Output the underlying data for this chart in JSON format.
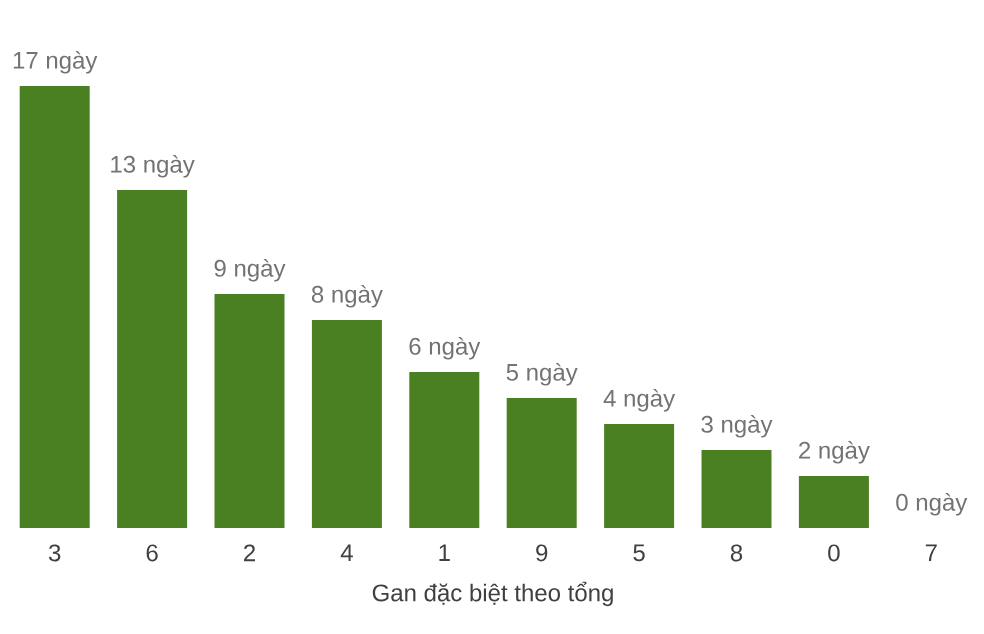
{
  "chart_data": {
    "type": "bar",
    "xlabel": "Gan đặc biệt theo tổng",
    "categories": [
      "3",
      "6",
      "2",
      "4",
      "1",
      "9",
      "5",
      "8",
      "0",
      "7"
    ],
    "values": [
      17,
      13,
      9,
      8,
      6,
      5,
      4,
      3,
      2,
      0
    ],
    "value_labels": [
      "17 ngày",
      "13 ngày",
      "9 ngày",
      "8 ngày",
      "6 ngày",
      "5 ngày",
      "4 ngày",
      "3 ngày",
      "2 ngày",
      "0 ngày"
    ],
    "color": "#4a7f22"
  }
}
